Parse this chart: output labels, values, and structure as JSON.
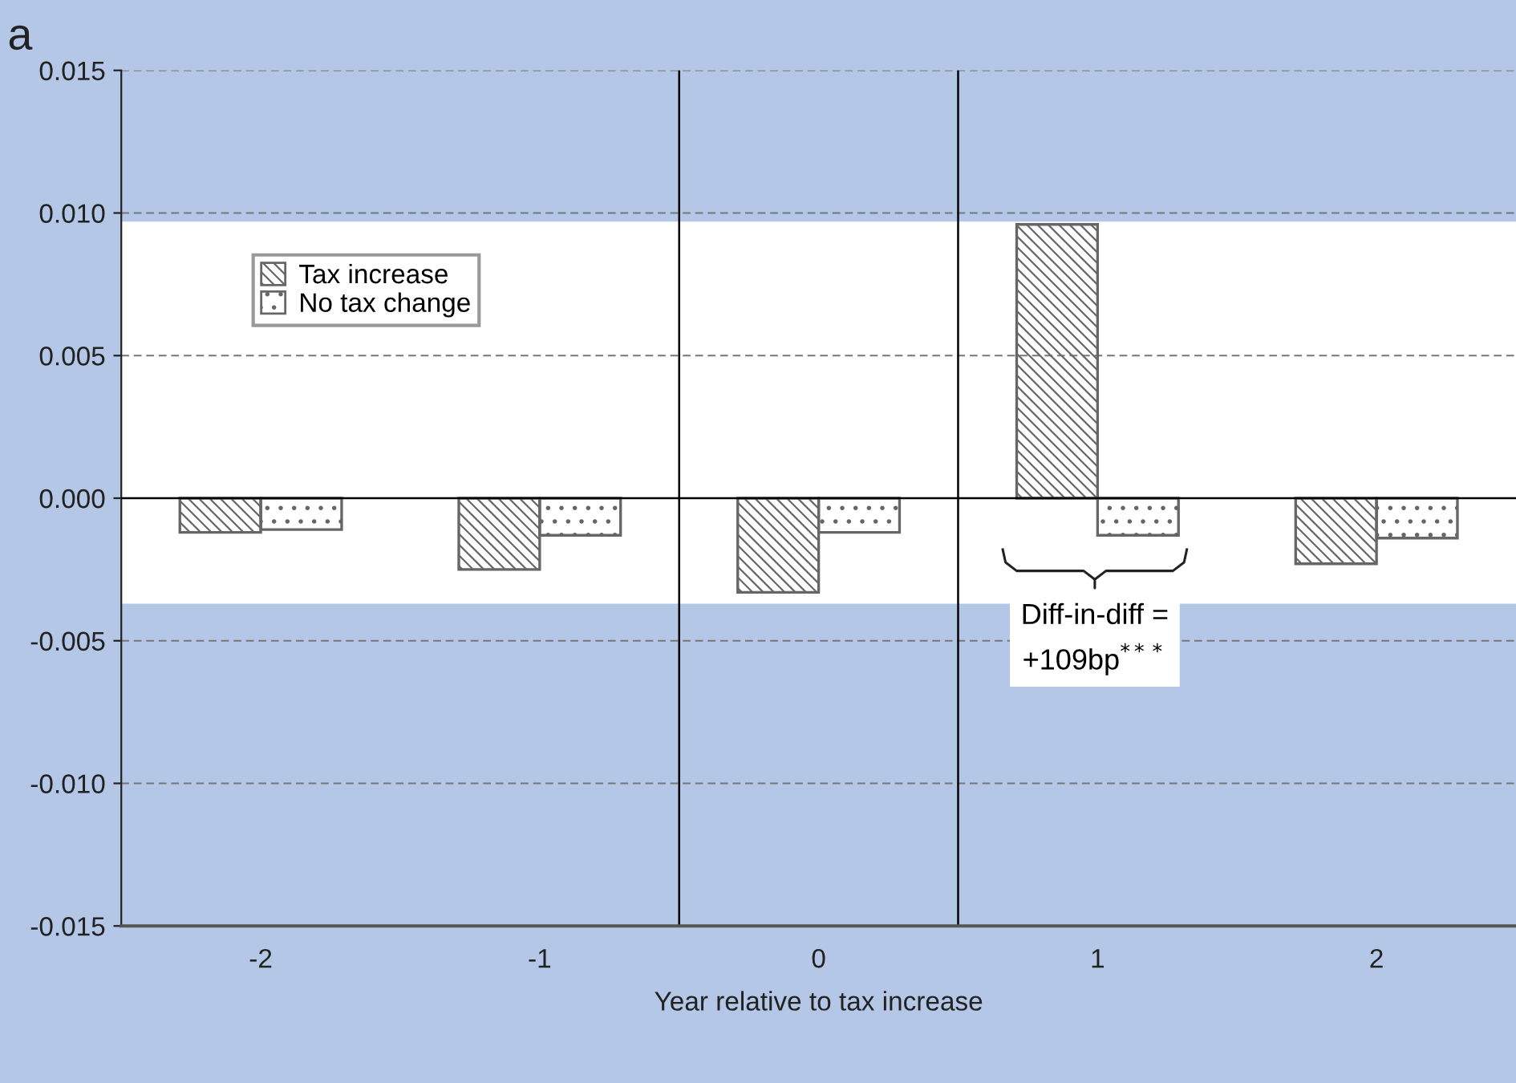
{
  "chart_data": {
    "type": "bar",
    "title": "a",
    "xlabel": "Year relative to tax increase",
    "x": [
      -2,
      -1,
      0,
      1,
      2
    ],
    "xlim": [
      -2.5,
      2.5
    ],
    "xticks": [
      -2,
      -1,
      0,
      1,
      2
    ],
    "ylim": [
      -0.015,
      0.015
    ],
    "yticks": [
      {
        "value": -0.015,
        "label": "-0.015"
      },
      {
        "value": -0.01,
        "label": "-0.010"
      },
      {
        "value": -0.005,
        "label": "-0.005"
      },
      {
        "value": 0,
        "label": "0.000"
      },
      {
        "value": 0.005,
        "label": "0.005"
      },
      {
        "value": 0.01,
        "label": "0.010"
      },
      {
        "value": 0.015,
        "label": "0.015"
      }
    ],
    "series": [
      {
        "name": "Tax increase",
        "color": "#666666",
        "values": [
          -0.0012,
          -0.0025,
          -0.0033,
          0.0096,
          -0.0023
        ]
      },
      {
        "name": "No tax change",
        "color": "#666666",
        "values": [
          -0.0011,
          -0.0013,
          -0.0012,
          -0.0013,
          -0.0014
        ]
      }
    ],
    "ref_lines": [
      {
        "axis": "x",
        "value": -0.5,
        "color": "#000000"
      },
      {
        "axis": "x",
        "value": 0.5,
        "color": "#000000"
      }
    ],
    "bands": [
      {
        "axis": "y",
        "from": -0.0037,
        "to": 0.0097,
        "color": "#ffffff"
      }
    ],
    "annotations": [
      "Diff-in-diff =\n+109bp$^{***}$"
    ],
    "grid": "y",
    "legend": "top left"
  }
}
